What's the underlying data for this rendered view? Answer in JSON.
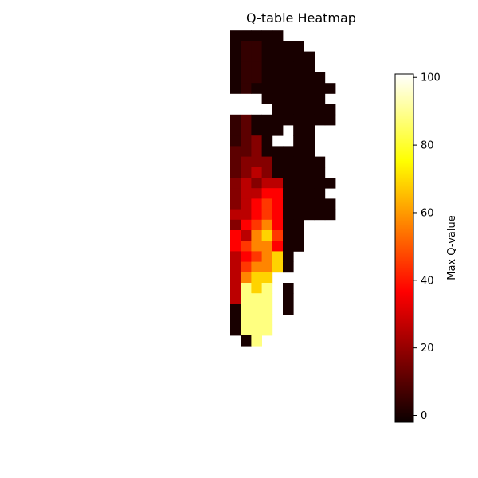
{
  "chart_data": {
    "type": "heatmap",
    "title": "Q-table Heatmap",
    "colormap": "hot",
    "value_range": [
      -2,
      101
    ],
    "colorbar": {
      "label": "Max Q-value",
      "ticks": [
        0,
        20,
        40,
        60,
        80,
        100
      ],
      "tick_labels": [
        "0",
        "20",
        "40",
        "60",
        "80",
        "100"
      ]
    },
    "grid": {
      "rows": 31,
      "cols": 11,
      "legend_codes": "'.' = no data (white); 0-9 = increasing max Q-value levels",
      "level_values": [
        0,
        4,
        10,
        16,
        24,
        34,
        44,
        56,
        68,
        88
      ],
      "cells": [
        "...........",
        "00000......",
        "0110000....",
        "01100000...",
        "01100000...",
        "011000000..",
        "0100000000.",
        "...000000..",
        "....000000.",
        "1200000000.",
        "12000.00...",
        "1230..00...",
        "22300000...",
        "233300000..",
        "234300000..",
        "3434400000.",
        "344550000..",
        "3456500000.",
        "4456500000.",
        "3567500....",
        "5478600....",
        "5677500....",
        "456780.....",
        "467780.....",
        "4788.......",
        "4989.0.....",
        "4999.0.....",
        "0999.0.....",
        "0999.......",
        "0999.......",
        ".09........"
      ]
    }
  }
}
